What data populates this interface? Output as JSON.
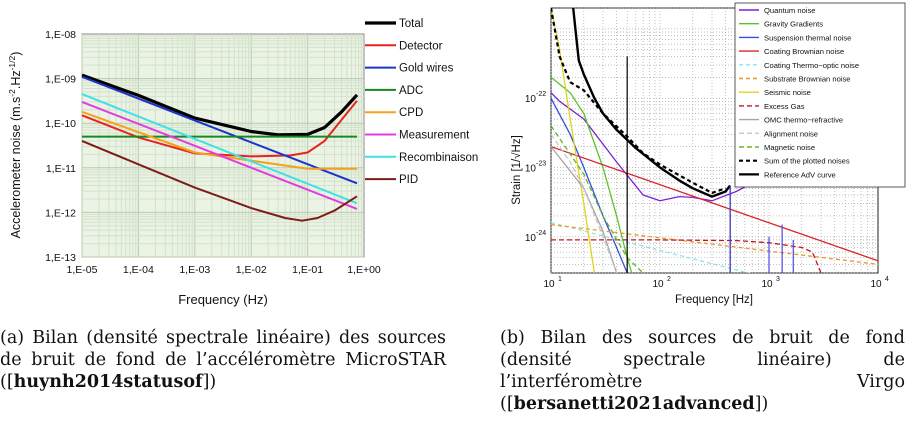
{
  "chart_data": [
    {
      "type": "line",
      "xlabel": "Frequency (Hz)",
      "ylabel": "Accelerometer noise (m.s-2.Hz-1/2)",
      "xscale": "log",
      "yscale": "log",
      "xlim": [
        1e-05,
        1
      ],
      "ylim": [
        1e-13,
        1e-08
      ],
      "x_ticks": [
        "1,E-05",
        "1,E-04",
        "1,E-03",
        "1,E-02",
        "1,E-01",
        "1,E+00"
      ],
      "y_ticks": [
        "1,E-13",
        "1,E-12",
        "1,E-11",
        "1,E-10",
        "1,E-09",
        "1,E-08"
      ],
      "grid": true,
      "legend_position": "right",
      "series": [
        {
          "name": "Total",
          "color": "#000000",
          "x": [
            1e-05,
            0.0001,
            0.001,
            0.01,
            0.03,
            0.1,
            0.2,
            0.4,
            0.75
          ],
          "y": [
            1.2e-09,
            4.2e-10,
            1.3e-10,
            6.5e-11,
            5.5e-11,
            5.6e-11,
            8e-11,
            1.8e-10,
            4.3e-10
          ]
        },
        {
          "name": "Detector",
          "color": "#e8231f",
          "x": [
            1e-05,
            0.0001,
            0.001,
            0.01,
            0.05,
            0.1,
            0.2,
            0.4,
            0.75
          ],
          "y": [
            1.5e-10,
            4.8e-11,
            2.1e-11,
            1.8e-11,
            1.9e-11,
            2.2e-11,
            4e-11,
            1.2e-10,
            3.2e-10
          ]
        },
        {
          "name": "Gold wires",
          "color": "#1a35cc",
          "x": [
            1e-05,
            0.75
          ],
          "y": [
            1.1e-09,
            4.5e-12
          ]
        },
        {
          "name": "ADC",
          "color": "#17871f",
          "x": [
            1e-05,
            0.75
          ],
          "y": [
            5e-11,
            5e-11
          ]
        },
        {
          "name": "CPD",
          "color": "#f4a21a",
          "x": [
            1e-05,
            0.001,
            0.1,
            0.75
          ],
          "y": [
            1.8e-10,
            2.2e-11,
            9.5e-12,
            9.5e-12
          ]
        },
        {
          "name": "Measurement",
          "color": "#e23ce2",
          "x": [
            1e-05,
            0.75
          ],
          "y": [
            3e-10,
            1.2e-12
          ]
        },
        {
          "name": "Recombinaison",
          "color": "#3fe0e8",
          "x": [
            1e-05,
            0.75
          ],
          "y": [
            4.5e-10,
            1.6e-12
          ]
        },
        {
          "name": "PID",
          "color": "#7d1d18",
          "x": [
            1e-05,
            0.0001,
            0.001,
            0.01,
            0.04,
            0.08,
            0.15,
            0.3,
            0.75
          ],
          "y": [
            4e-11,
            1.2e-11,
            3.6e-12,
            1.25e-12,
            7.5e-13,
            6.5e-13,
            7.5e-13,
            1.1e-12,
            2.3e-12
          ]
        }
      ]
    },
    {
      "type": "line",
      "xlabel": "Frequency [Hz]",
      "ylabel": "Strain [1/√Hz]",
      "xscale": "log",
      "yscale": "log",
      "xlim": [
        10,
        10000
      ],
      "ylim": [
        3e-25,
        2e-21
      ],
      "x_ticks": [
        "10",
        "10",
        "10",
        "10"
      ],
      "x_tick_exps": [
        "1",
        "2",
        "3",
        "4"
      ],
      "y_ticks": [
        "10",
        "10",
        "10"
      ],
      "y_tick_exps": [
        "-22",
        "-23",
        "-24"
      ],
      "grid": true,
      "legend_position": "top-right",
      "series": [
        {
          "name": "Quantum noise",
          "color": "#7a22d6",
          "dash": "",
          "x": [
            10,
            12,
            20,
            40,
            70,
            100,
            150,
            200,
            300,
            500,
            1000,
            2000,
            5000,
            10000
          ],
          "y": [
            1.2e-22,
            9e-23,
            5e-23,
            1.2e-23,
            4e-24,
            3.3e-24,
            3.8e-24,
            3.7e-24,
            3.3e-24,
            4.5e-24,
            8e-24,
            1.5e-23,
            3.5e-23,
            7e-23
          ]
        },
        {
          "name": "Gravity Gradients",
          "color": "#5cc22a",
          "dash": "",
          "x": [
            10,
            15,
            20,
            30,
            40,
            50,
            55
          ],
          "y": [
            2e-22,
            1.2e-22,
            6e-23,
            1e-23,
            2e-24,
            5e-25,
            3e-25
          ]
        },
        {
          "name": "Suspension thermal noise",
          "color": "#3550e0",
          "dash": "",
          "x": [
            10,
            15,
            20,
            30,
            40,
            50
          ],
          "y": [
            1e-22,
            3e-23,
            1e-23,
            2e-24,
            7e-25,
            3e-25
          ]
        },
        {
          "name": "Coating Brownian noise",
          "color": "#d8262a",
          "dash": "",
          "x": [
            10,
            10000
          ],
          "y": [
            2e-23,
            4.5e-25
          ]
        },
        {
          "name": "Coating Thermo−optic noise",
          "color": "#8fe3ea",
          "dash": "4,3",
          "x": [
            10,
            10000
          ],
          "y": [
            1.6e-24,
            1e-25
          ]
        },
        {
          "name": "Substrate Brownian noise",
          "color": "#e89a28",
          "dash": "4,3",
          "x": [
            10,
            10000
          ],
          "y": [
            1.5e-24,
            4e-25
          ]
        },
        {
          "name": "Seismic noise",
          "color": "#e3d21c",
          "dash": "",
          "x": [
            10,
            12,
            15,
            20,
            25
          ],
          "y": [
            2e-21,
            5e-22,
            5e-23,
            3e-24,
            3e-25
          ]
        },
        {
          "name": "Excess Gas",
          "color": "#c4161c",
          "dash": "5,3",
          "x": [
            10,
            100,
            500,
            1000,
            2000,
            2500,
            3000
          ],
          "y": [
            9e-25,
            9e-25,
            8.8e-25,
            8.2e-25,
            7e-25,
            6e-25,
            3e-25
          ]
        },
        {
          "name": "OMC thermo−refractive",
          "color": "#a6a6a6",
          "dash": "",
          "x": [
            10,
            20,
            30,
            40
          ],
          "y": [
            2e-23,
            5e-24,
            1.2e-24,
            3e-25
          ]
        },
        {
          "name": "Alignment noise",
          "color": "#c8c8c8",
          "dash": "5,3",
          "x": [
            10,
            15,
            20,
            30,
            40
          ],
          "y": [
            3e-23,
            1.2e-23,
            5e-24,
            1e-24,
            3e-25
          ]
        },
        {
          "name": "Magnetic noise",
          "color": "#62b82a",
          "dash": "5,3",
          "x": [
            10,
            20,
            30,
            50,
            70
          ],
          "y": [
            4e-23,
            8e-24,
            2e-24,
            5e-25,
            3e-25
          ]
        },
        {
          "name": "Sum of the plotted noises",
          "color": "#000000",
          "dash": "4,3",
          "x": [
            10,
            12,
            15,
            20,
            30,
            50,
            70,
            100,
            200,
            300,
            400
          ],
          "y": [
            2e-21,
            4e-22,
            1.7e-22,
            1.3e-22,
            6e-23,
            2.8e-23,
            1.6e-23,
            1.1e-23,
            6e-24,
            4.3e-24,
            5e-24
          ]
        },
        {
          "name": "Reference AdV curve",
          "color": "#000000",
          "dash": "",
          "x": [
            16,
            17,
            18,
            20,
            25,
            30,
            40,
            60,
            100,
            150,
            200,
            300,
            400,
            440
          ],
          "y": [
            2e-21,
            8e-22,
            3.5e-22,
            2.2e-22,
            1e-22,
            6e-23,
            3.5e-23,
            1.9e-23,
            1e-23,
            6.5e-24,
            5e-24,
            3.8e-24,
            4.5e-24,
            5.5e-24
          ]
        }
      ]
    }
  ],
  "captions": {
    "a_pre": "(a) Bilan (densité spectrale linéaire) des sources de bruit de fond de l’accéléromètre MicroSTAR ([",
    "a_ref": "huynh2014statusof",
    "a_post": "])",
    "b_pre": "(b) Bilan des sources de bruit de fond (densité spectrale linéaire) de l’interféromètre Virgo ([",
    "b_ref": "bersanetti2021advanced",
    "b_post": "])"
  }
}
